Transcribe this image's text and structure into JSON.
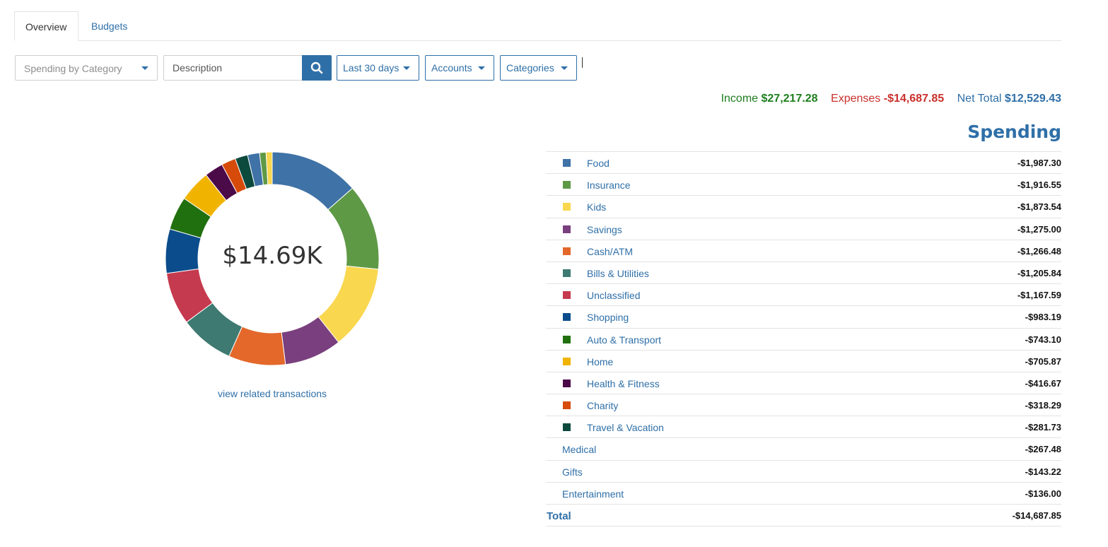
{
  "tabs": [
    {
      "label": "Overview",
      "active": true
    },
    {
      "label": "Budgets",
      "active": false
    }
  ],
  "toolbar": {
    "report_select": "Spending by Category",
    "search_placeholder": "Description",
    "date_range": "Last 30 days",
    "accounts": "Accounts",
    "categories": "Categories"
  },
  "summary": {
    "income_label": "Income",
    "income_value": "$27,217.28",
    "expenses_label": "Expenses",
    "expenses_value": "-$14,687.85",
    "net_label": "Net Total",
    "net_value": "$12,529.43"
  },
  "donut": {
    "center_label": "$14.69K",
    "view_link": "view related transactions"
  },
  "spending": {
    "title": "Spending",
    "rows": [
      {
        "label": "Food",
        "amount": "-$1,987.30",
        "value": 1987.3,
        "color": "#3f72a6"
      },
      {
        "label": "Insurance",
        "amount": "-$1,916.55",
        "value": 1916.55,
        "color": "#5e9946"
      },
      {
        "label": "Kids",
        "amount": "-$1,873.54",
        "value": 1873.54,
        "color": "#f9d74e"
      },
      {
        "label": "Savings",
        "amount": "-$1,275.00",
        "value": 1275.0,
        "color": "#7a3f7e"
      },
      {
        "label": "Cash/ATM",
        "amount": "-$1,266.48",
        "value": 1266.48,
        "color": "#e3682a"
      },
      {
        "label": "Bills & Utilities",
        "amount": "-$1,205.84",
        "value": 1205.84,
        "color": "#3e7a72"
      },
      {
        "label": "Unclassified",
        "amount": "-$1,167.59",
        "value": 1167.59,
        "color": "#c53a4e"
      },
      {
        "label": "Shopping",
        "amount": "-$983.19",
        "value": 983.19,
        "color": "#0b4d8c"
      },
      {
        "label": "Auto & Transport",
        "amount": "-$743.10",
        "value": 743.1,
        "color": "#21700f"
      },
      {
        "label": "Home",
        "amount": "-$705.87",
        "value": 705.87,
        "color": "#f0b400"
      },
      {
        "label": "Health & Fitness",
        "amount": "-$416.67",
        "value": 416.67,
        "color": "#4b0a48"
      },
      {
        "label": "Charity",
        "amount": "-$318.29",
        "value": 318.29,
        "color": "#d64a0a"
      },
      {
        "label": "Travel & Vacation",
        "amount": "-$281.73",
        "value": 281.73,
        "color": "#0c4a3e"
      },
      {
        "label": "Medical",
        "amount": "-$267.48",
        "value": 267.48,
        "color": "#3f72a6"
      },
      {
        "label": "Gifts",
        "amount": "-$143.22",
        "value": 143.22,
        "color": "#5e9946"
      },
      {
        "label": "Entertainment",
        "amount": "-$136.00",
        "value": 136.0,
        "color": "#f9d74e"
      }
    ],
    "total_label": "Total",
    "total_amount": "-$14,687.85"
  }
}
